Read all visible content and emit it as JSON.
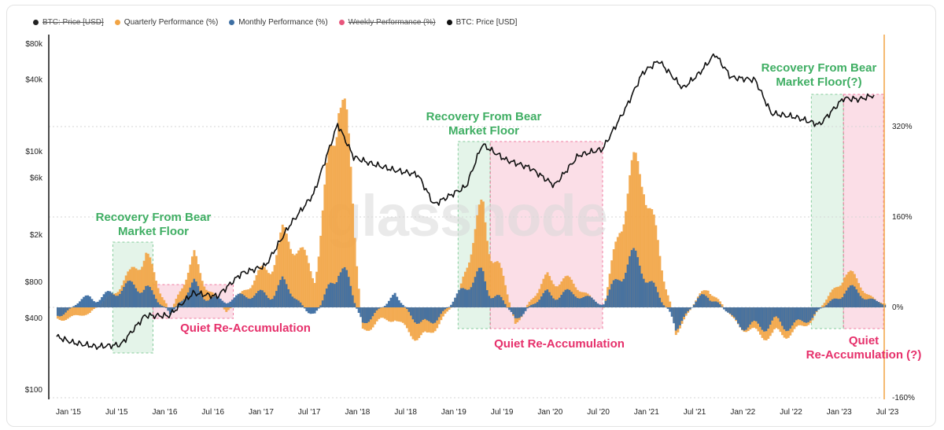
{
  "legend": {
    "items": [
      {
        "label": "BTC: Price [USD]",
        "color": "#222222",
        "struck": true
      },
      {
        "label": "Quarterly Performance (%)",
        "color": "#f2a444",
        "struck": false
      },
      {
        "label": "Monthly Performance (%)",
        "color": "#3e6fa3",
        "struck": false
      },
      {
        "label": "Weekly Performance (%)",
        "color": "#e8567c",
        "struck": true
      },
      {
        "label": "BTC: Price [USD]",
        "color": "#111111",
        "struck": false
      }
    ]
  },
  "watermark": "glassnode",
  "chart_data": {
    "type": "line",
    "title": "",
    "x_ticks": [
      "Jan '15",
      "Jul '15",
      "Jan '16",
      "Jul '16",
      "Jan '17",
      "Jul '17",
      "Jan '18",
      "Jul '18",
      "Jan '19",
      "Jul '19",
      "Jan '20",
      "Jul '20",
      "Jan '21",
      "Jul '21",
      "Jan '22",
      "Jul '22",
      "Jan '23",
      "Jul '23"
    ],
    "y_left": {
      "scale": "log",
      "ticks": [
        "$100",
        "$400",
        "$800",
        "$2k",
        "$6k",
        "$10k",
        "$40k",
        "$80k"
      ],
      "range": [
        100,
        80000
      ]
    },
    "y_right": {
      "scale": "linear",
      "ticks": [
        "-160%",
        "0%",
        "160%",
        "320%"
      ],
      "range": [
        -160,
        400
      ]
    },
    "colors": {
      "price": "#111111",
      "quarterly": "#f2a444",
      "monthly": "#3e6fa3",
      "green_zone": "#3fae63",
      "pink_zone": "#e6306b",
      "right_axis": "#f2a444"
    },
    "series": [
      {
        "name": "BTC: Price [USD]",
        "x": [
          "2015-01",
          "2015-03",
          "2015-06",
          "2015-09",
          "2015-12",
          "2016-03",
          "2016-06",
          "2016-09",
          "2016-12",
          "2017-03",
          "2017-06",
          "2017-09",
          "2017-12",
          "2018-02",
          "2018-04",
          "2018-07",
          "2018-10",
          "2018-12",
          "2019-04",
          "2019-06",
          "2019-09",
          "2019-12",
          "2020-03",
          "2020-06",
          "2020-09",
          "2020-12",
          "2021-02",
          "2021-04",
          "2021-07",
          "2021-09",
          "2021-11",
          "2022-01",
          "2022-04",
          "2022-06",
          "2022-09",
          "2022-12",
          "2023-03",
          "2023-05",
          "2023-07"
        ],
        "values": [
          280,
          250,
          230,
          240,
          420,
          420,
          650,
          610,
          950,
          1100,
          2400,
          4400,
          17000,
          9000,
          8000,
          7000,
          6400,
          3600,
          5100,
          11500,
          8500,
          7300,
          5200,
          9300,
          10500,
          24000,
          46000,
          58000,
          34000,
          45000,
          66000,
          42000,
          40000,
          21000,
          19500,
          16800,
          28000,
          27500,
          30000
        ]
      },
      {
        "name": "Quarterly Performance (%)",
        "x": [
          "2015-01",
          "2015-05",
          "2015-10",
          "2015-12",
          "2016-03",
          "2016-06",
          "2016-10",
          "2017-01",
          "2017-05",
          "2017-09",
          "2017-12",
          "2018-03",
          "2018-07",
          "2018-11",
          "2019-03",
          "2019-06",
          "2019-10",
          "2020-02",
          "2020-05",
          "2020-09",
          "2020-11",
          "2021-02",
          "2021-06",
          "2021-10",
          "2022-01",
          "2022-06",
          "2022-11",
          "2023-03",
          "2023-07"
        ],
        "values": [
          -20,
          -10,
          50,
          100,
          -10,
          80,
          -10,
          40,
          120,
          60,
          420,
          -40,
          -20,
          -60,
          20,
          180,
          -30,
          60,
          40,
          0,
          150,
          240,
          -40,
          40,
          -20,
          -60,
          -20,
          60,
          10
        ]
      },
      {
        "name": "Monthly Performance (%)",
        "x": [
          "2015-01",
          "2015-05",
          "2015-10",
          "2015-12",
          "2016-03",
          "2016-06",
          "2016-10",
          "2017-01",
          "2017-05",
          "2017-09",
          "2017-12",
          "2018-03",
          "2018-07",
          "2018-11",
          "2019-03",
          "2019-06",
          "2019-10",
          "2020-02",
          "2020-05",
          "2020-09",
          "2020-11",
          "2021-02",
          "2021-06",
          "2021-10",
          "2022-01",
          "2022-06",
          "2022-11",
          "2023-03",
          "2023-07"
        ],
        "values": [
          -15,
          20,
          30,
          40,
          -10,
          35,
          10,
          20,
          40,
          -20,
          80,
          -30,
          20,
          -40,
          20,
          60,
          -20,
          30,
          20,
          10,
          60,
          70,
          -30,
          30,
          -20,
          -40,
          -15,
          30,
          10
        ]
      }
    ],
    "annotations": [
      {
        "text_lines": [
          "Recovery From Bear",
          "Market Floor"
        ],
        "kind": "green"
      },
      {
        "text_lines": [
          "Quiet Re-Accumulation"
        ],
        "kind": "pink"
      },
      {
        "text_lines": [
          "Recovery From Bear",
          "Market Floor"
        ],
        "kind": "green"
      },
      {
        "text_lines": [
          "Quiet Re-Accumulation"
        ],
        "kind": "pink"
      },
      {
        "text_lines": [
          "Recovery From Bear",
          "Market Floor(?)"
        ],
        "kind": "green"
      },
      {
        "text_lines": [
          "Quiet",
          "Re-Accumulation (?)"
        ],
        "kind": "pink"
      }
    ],
    "zones": [
      {
        "kind": "green",
        "from": "2015-08",
        "to": "2016-01"
      },
      {
        "kind": "pink",
        "from": "2016-01",
        "to": "2016-11"
      },
      {
        "kind": "green",
        "from": "2019-03",
        "to": "2019-07"
      },
      {
        "kind": "pink",
        "from": "2019-07",
        "to": "2020-09"
      },
      {
        "kind": "green",
        "from": "2022-11",
        "to": "2023-03"
      },
      {
        "kind": "pink",
        "from": "2023-03",
        "to": "2023-08"
      }
    ],
    "grid": true,
    "legend_position": "top-left"
  }
}
